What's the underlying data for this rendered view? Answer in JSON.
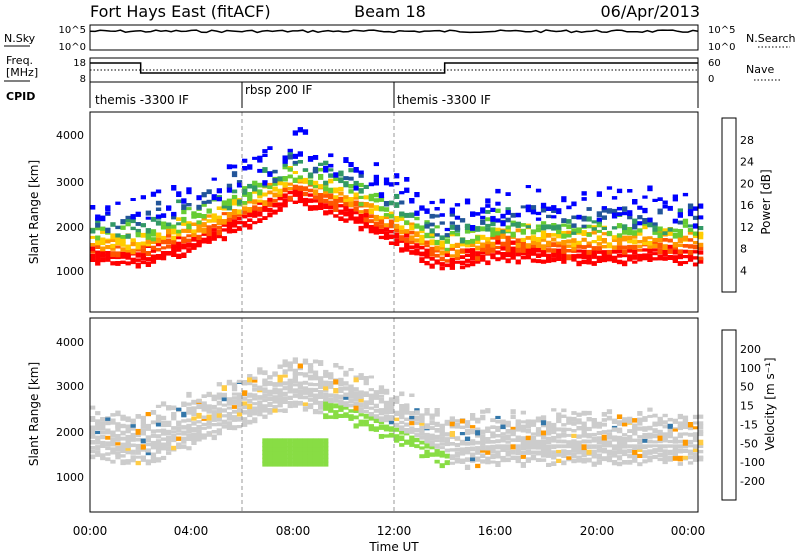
{
  "header": {
    "station": "Fort Hays East (fitACF)",
    "beam": "Beam 18",
    "date": "06/Apr/2013"
  },
  "noise_panel": {
    "left_label": "N.Sky",
    "right_label": "N.Search",
    "left_ticks": [
      "10^5",
      "10^0"
    ],
    "right_ticks": [
      "10^5",
      "10^0"
    ]
  },
  "freq_panel": {
    "left_label_1": "Freq.",
    "left_label_2": "[MHz]",
    "right_label": "Nave",
    "left_ticks": [
      "18",
      "8"
    ],
    "right_ticks": [
      "60",
      "0"
    ],
    "freq_steps": [
      {
        "start": 0.0,
        "end": 2.0,
        "level": "high"
      },
      {
        "start": 2.0,
        "end": 14.0,
        "level": "low"
      },
      {
        "start": 14.0,
        "end": 24.0,
        "level": "high"
      }
    ]
  },
  "cpid": {
    "label": "CPID",
    "segments": [
      {
        "name": "themis -3300 IF",
        "start": 0.0,
        "end": 6.0
      },
      {
        "name": "rbsp 200 IF",
        "start": 6.0,
        "end": 12.0
      },
      {
        "name": "themis -3300 IF",
        "start": 12.0,
        "end": 24.0
      }
    ]
  },
  "power_panel": {
    "ylabel": "Slant Range [km]",
    "yticks": [
      "4000",
      "3000",
      "2000",
      "1000"
    ],
    "colorbar_label": "Power [dB]",
    "colorbar_ticks": [
      "28",
      "24",
      "20",
      "16",
      "12",
      "8",
      "4"
    ],
    "colorbar_colors": [
      "#ff0000",
      "#ff5500",
      "#ff9900",
      "#ffcc00",
      "#66cc33",
      "#339966",
      "#225599",
      "#0000ff"
    ]
  },
  "velocity_panel": {
    "ylabel": "Slant Range [km]",
    "yticks": [
      "4000",
      "3000",
      "2000",
      "1000"
    ],
    "colorbar_label": "Velocity [m s⁻¹]",
    "colorbar_ticks": [
      "200",
      "100",
      "50",
      "15",
      "-15",
      "-50",
      "-100",
      "-200"
    ],
    "colorbar_colors": [
      "#2233aa",
      "#3377aa",
      "#44aa44",
      "#88dd44",
      "#cccccc",
      "#ffcc44",
      "#ff9900",
      "#ff5500",
      "#ff0000"
    ]
  },
  "xaxis": {
    "label": "Time UT",
    "ticks": [
      "00:00",
      "04:00",
      "08:00",
      "12:00",
      "16:00",
      "20:00",
      "00:00"
    ]
  },
  "chart_data": {
    "type": "heatmap",
    "x_range_hours": [
      0,
      24
    ],
    "y_range_km": [
      0,
      4500
    ],
    "bands": [
      {
        "panel": "power",
        "t": [
          0,
          2,
          4,
          6,
          8,
          10,
          12,
          14,
          16,
          18,
          20,
          22,
          24
        ],
        "range_km": [
          1400,
          1350,
          1700,
          2200,
          2800,
          2400,
          1800,
          1200,
          1500,
          1450,
          1400,
          1450,
          1400
        ]
      },
      {
        "panel": "velocity",
        "t": [
          0,
          2,
          4,
          6,
          8,
          10,
          12,
          14,
          16,
          18,
          20,
          22,
          24
        ],
        "range_km": [
          1600,
          1500,
          1900,
          2400,
          2800,
          2500,
          2000,
          1400,
          1500,
          1500,
          1500,
          1500,
          1500
        ]
      }
    ]
  }
}
